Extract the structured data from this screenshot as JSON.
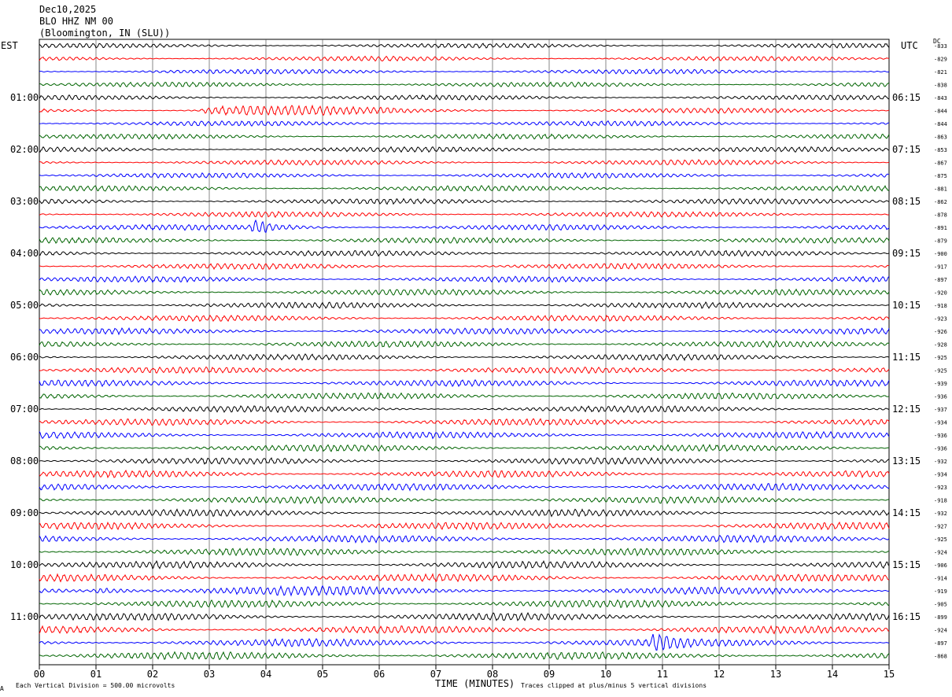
{
  "header": {
    "date": "Dec10,2025",
    "station": "BLO HHZ NM 00",
    "location": "(Bloomington, IN (SLU))"
  },
  "left_axis_label": "EST",
  "right_axis_label": "UTC",
  "dc_label": "DC",
  "footer": {
    "scale": "Each Vertical Division =  500.00 microvolts",
    "clip": "Traces clipped at plus/minus 5 vertical divisions",
    "corner": "A"
  },
  "trace_colors": [
    "#000000",
    "#ff0000",
    "#0000ff",
    "#006400"
  ],
  "chart_data": {
    "type": "line",
    "title": "",
    "xlabel": "TIME (MINUTES)",
    "xlim": [
      0,
      15
    ],
    "x_ticks": [
      "00",
      "01",
      "02",
      "03",
      "04",
      "05",
      "06",
      "07",
      "08",
      "09",
      "10",
      "11",
      "12",
      "13",
      "14",
      "15"
    ],
    "grid": true,
    "traces_per_hour": 4,
    "est_labels": [
      "01:00",
      "02:00",
      "03:00",
      "04:00",
      "05:00",
      "06:00",
      "07:00",
      "08:00",
      "09:00",
      "10:00",
      "11:00"
    ],
    "utc_labels": [
      "06:15",
      "07:15",
      "08:15",
      "09:15",
      "10:15",
      "11:15",
      "12:15",
      "13:15",
      "14:15",
      "15:15",
      "16:15"
    ],
    "dc_offsets": [
      "-833",
      "-829",
      "-821",
      "-838",
      "-843",
      "-844",
      "-844",
      "-863",
      "-853",
      "-867",
      "-875",
      "-881",
      "-862",
      "-878",
      "-891",
      "-879",
      "-900",
      "-917",
      "-897",
      "-920",
      "-918",
      "-923",
      "-926",
      "-928",
      "-925",
      "-925",
      "-939",
      "-936",
      "-937",
      "-934",
      "-936",
      "-936",
      "-932",
      "-934",
      "-923",
      "-918",
      "-932",
      "-927",
      "-925",
      "-924",
      "-906",
      "-914",
      "-919",
      "-905",
      "-899",
      "-924",
      "-897",
      "-868"
    ],
    "events": [
      {
        "trace": 5,
        "start_min": 2.8,
        "end_min": 6.6,
        "amp": 2.2
      },
      {
        "trace": 14,
        "start_min": 3.7,
        "end_min": 5.5,
        "amp": 1.6
      },
      {
        "trace": 42,
        "start_min": 0.9,
        "end_min": 6.0,
        "amp": 1.5
      },
      {
        "trace": 46,
        "start_min": 10.8,
        "end_min": 11.6,
        "amp": 1.2
      }
    ]
  }
}
